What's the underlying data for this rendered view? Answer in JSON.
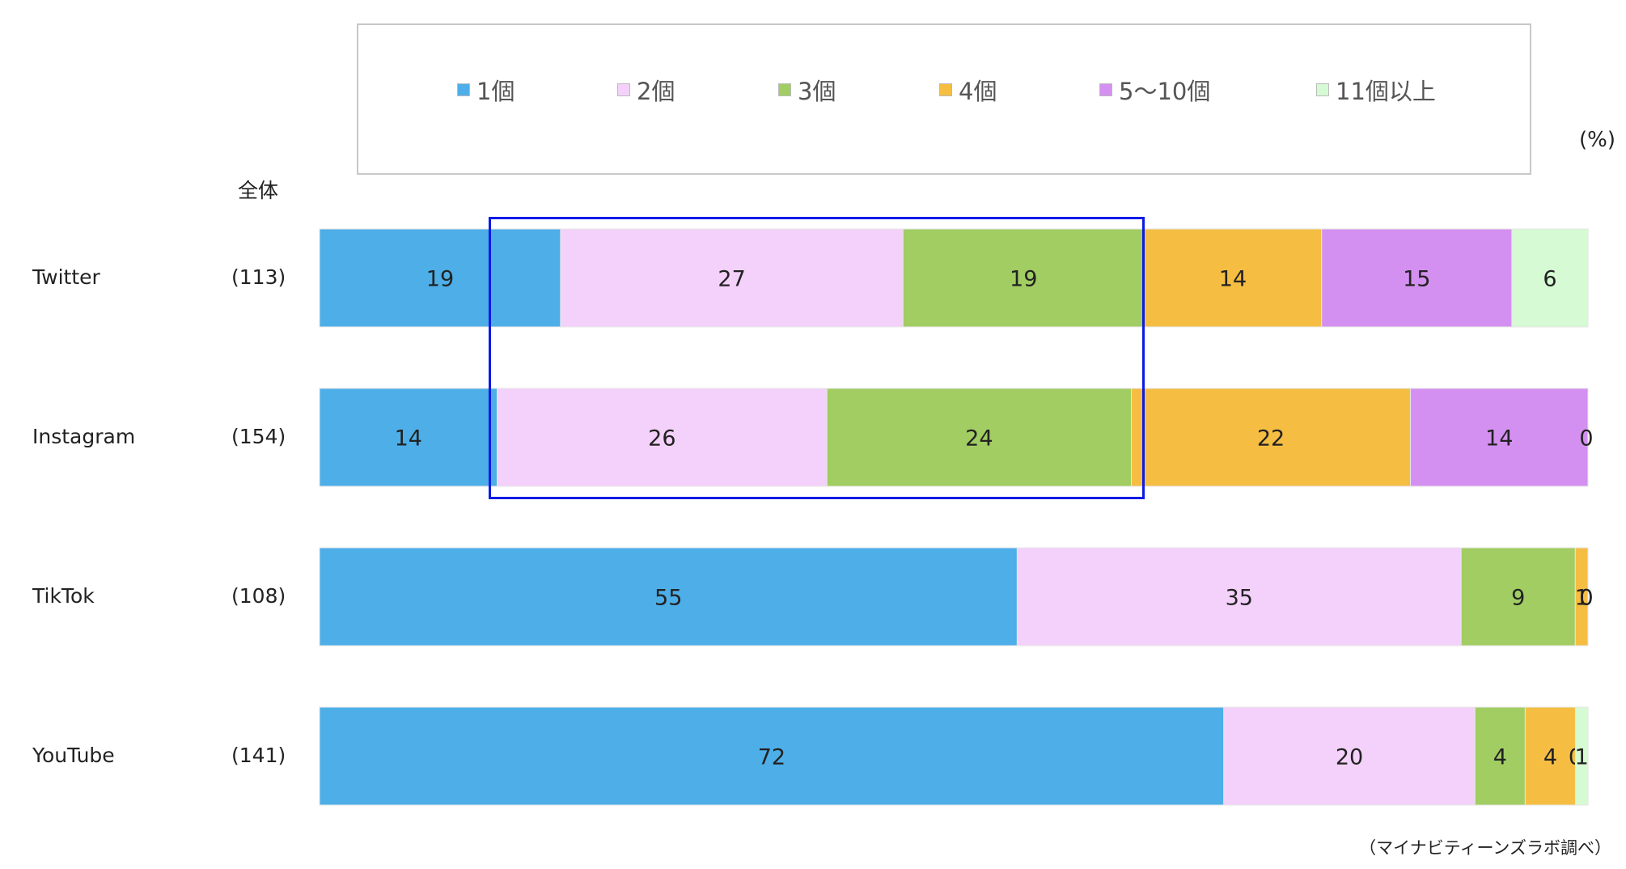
{
  "chart_data": {
    "type": "bar",
    "orientation": "horizontal",
    "stacked": true,
    "unit": "(%)",
    "group_label": "全体",
    "categories": [
      "Twitter",
      "Instagram",
      "TikTok",
      "YouTube"
    ],
    "n": [
      "(113)",
      "(154)",
      "(108)",
      "(141)"
    ],
    "series": [
      {
        "name": "1個",
        "color": "#4daee8",
        "values": [
          19,
          14,
          55,
          72
        ]
      },
      {
        "name": "2個",
        "color": "#f4d1fa",
        "values": [
          27,
          26,
          35,
          20
        ]
      },
      {
        "name": "3個",
        "color": "#a1cd62",
        "values": [
          19,
          24,
          9,
          4
        ]
      },
      {
        "name": "4個",
        "color": "#f5be43",
        "values": [
          14,
          22,
          1,
          4
        ]
      },
      {
        "name": "5～10個",
        "color": "#d490f0",
        "values": [
          15,
          14,
          0,
          0
        ]
      },
      {
        "name": "11個以上",
        "color": "#d6fad3",
        "values": [
          6,
          0,
          0,
          1
        ]
      }
    ],
    "legend_position": "top",
    "highlight": {
      "series": [
        "2個",
        "3個"
      ],
      "categories": [
        "Twitter",
        "Instagram"
      ],
      "color": "#0a1be6"
    }
  },
  "source": "（マイナビティーンズラボ調べ）"
}
